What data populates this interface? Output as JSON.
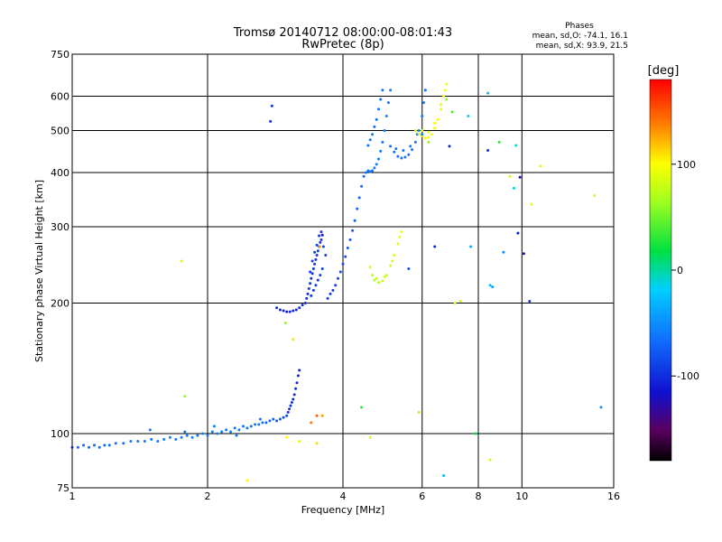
{
  "chart_data": {
    "type": "scatter",
    "title": "Tromsø 20140712 08:00:00-08:01:43",
    "subtitle": "RwPretec (8p)",
    "xlabel": "Frequency [MHz]",
    "ylabel": "Stationary phase Virtual Height [km]",
    "x_scale": "log",
    "y_scale": "log",
    "xlim": [
      1,
      16
    ],
    "ylim": [
      75,
      750
    ],
    "x_ticks": [
      1,
      2,
      4,
      6,
      8,
      10,
      16
    ],
    "x_tick_labels": [
      "1",
      "2",
      "4",
      "6",
      "8",
      "10",
      "16"
    ],
    "y_ticks": [
      75,
      100,
      200,
      300,
      400,
      500,
      600,
      750
    ],
    "y_tick_labels": [
      "75",
      "100",
      "200",
      "300",
      "400",
      "500",
      "600",
      "750"
    ],
    "grid": true,
    "stats": {
      "heading": "Phases",
      "o_line": "mean, sd,O: -74.1, 16.1",
      "x_line": "mean, sd,X:  93.9, 21.5"
    },
    "colorbar": {
      "label": "[deg]",
      "range": [
        -180,
        180
      ],
      "ticks": [
        100,
        0,
        -100
      ],
      "tick_labels": [
        "100",
        "0",
        "-100"
      ],
      "placement": "right"
    },
    "colors": {
      "grid": "#000000",
      "cyan_trace": "#22aaee",
      "blue_trace": "#1030d8",
      "yellow_trace": "#e8e010",
      "orange_trace": "#f08a10"
    },
    "points": [
      [
        1.0,
        93,
        -75
      ],
      [
        1.03,
        93,
        -70
      ],
      [
        1.06,
        94,
        -72
      ],
      [
        1.09,
        93,
        -68
      ],
      [
        1.12,
        94,
        -70
      ],
      [
        1.15,
        93,
        -66
      ],
      [
        1.18,
        94,
        -70
      ],
      [
        1.21,
        94,
        -64
      ],
      [
        1.25,
        95,
        -62
      ],
      [
        1.3,
        95,
        -66
      ],
      [
        1.35,
        96,
        -60
      ],
      [
        1.4,
        96,
        -64
      ],
      [
        1.45,
        96,
        -58
      ],
      [
        1.5,
        97,
        -62
      ],
      [
        1.55,
        96,
        -58
      ],
      [
        1.6,
        97,
        -60
      ],
      [
        1.65,
        98,
        -56
      ],
      [
        1.7,
        97,
        -62
      ],
      [
        1.75,
        98,
        -58
      ],
      [
        1.8,
        99,
        -60
      ],
      [
        1.85,
        98,
        -56
      ],
      [
        1.9,
        99,
        -62
      ],
      [
        1.95,
        100,
        -58
      ],
      [
        2.0,
        99,
        -60
      ],
      [
        2.05,
        101,
        -56
      ],
      [
        2.1,
        100,
        -62
      ],
      [
        2.15,
        101,
        -58
      ],
      [
        2.2,
        102,
        -64
      ],
      [
        2.25,
        101,
        -60
      ],
      [
        2.3,
        103,
        -62
      ],
      [
        2.35,
        102,
        -58
      ],
      [
        2.4,
        104,
        -64
      ],
      [
        2.45,
        103,
        -60
      ],
      [
        2.5,
        104,
        -62
      ],
      [
        2.55,
        105,
        -60
      ],
      [
        2.6,
        105,
        -64
      ],
      [
        2.65,
        106,
        -62
      ],
      [
        2.7,
        106,
        -70
      ],
      [
        2.75,
        107,
        -68
      ],
      [
        2.8,
        108,
        -72
      ],
      [
        2.85,
        107,
        -76
      ],
      [
        2.9,
        108,
        -78
      ],
      [
        2.95,
        109,
        -82
      ],
      [
        3.0,
        110,
        -86
      ],
      [
        3.02,
        112,
        -90
      ],
      [
        3.04,
        114,
        -94
      ],
      [
        3.06,
        116,
        -96
      ],
      [
        3.08,
        118,
        -98
      ],
      [
        3.1,
        120,
        -100
      ],
      [
        3.12,
        123,
        -100
      ],
      [
        3.14,
        127,
        -102
      ],
      [
        3.16,
        131,
        -100
      ],
      [
        3.18,
        136,
        -104
      ],
      [
        3.2,
        140,
        -102
      ],
      [
        1.49,
        102,
        -62
      ],
      [
        1.78,
        101,
        -58
      ],
      [
        2.07,
        104,
        -56
      ],
      [
        2.32,
        99,
        -58
      ],
      [
        2.62,
        108,
        -62
      ],
      [
        2.85,
        195,
        -104
      ],
      [
        2.9,
        193,
        -106
      ],
      [
        2.95,
        192,
        -104
      ],
      [
        3.0,
        191,
        -106
      ],
      [
        3.05,
        191,
        -102
      ],
      [
        3.1,
        192,
        -104
      ],
      [
        3.15,
        193,
        -106
      ],
      [
        3.2,
        195,
        -104
      ],
      [
        3.25,
        198,
        -100
      ],
      [
        3.3,
        200,
        -102
      ],
      [
        3.32,
        205,
        -98
      ],
      [
        3.34,
        210,
        -100
      ],
      [
        3.36,
        216,
        -96
      ],
      [
        3.38,
        222,
        -98
      ],
      [
        3.4,
        228,
        -96
      ],
      [
        3.42,
        234,
        -98
      ],
      [
        3.44,
        240,
        -94
      ],
      [
        3.46,
        246,
        -96
      ],
      [
        3.48,
        252,
        -94
      ],
      [
        3.5,
        258,
        -92
      ],
      [
        3.52,
        264,
        -94
      ],
      [
        3.54,
        270,
        -92
      ],
      [
        3.56,
        276,
        -94
      ],
      [
        3.58,
        280,
        -92
      ],
      [
        3.38,
        236,
        -90
      ],
      [
        3.42,
        250,
        -88
      ],
      [
        3.46,
        262,
        -92
      ],
      [
        3.5,
        272,
        -90
      ],
      [
        3.54,
        286,
        -94
      ],
      [
        3.58,
        292,
        -92
      ],
      [
        3.62,
        270,
        -90
      ],
      [
        3.66,
        258,
        -92
      ],
      [
        3.4,
        208,
        -96
      ],
      [
        3.44,
        214,
        -94
      ],
      [
        3.48,
        220,
        -92
      ],
      [
        3.52,
        226,
        -94
      ],
      [
        3.56,
        232,
        -92
      ],
      [
        3.6,
        240,
        -90
      ],
      [
        3.7,
        205,
        -92
      ],
      [
        3.75,
        210,
        -94
      ],
      [
        3.8,
        214,
        -92
      ],
      [
        3.85,
        220,
        -90
      ],
      [
        3.9,
        228,
        -88
      ],
      [
        3.95,
        236,
        -86
      ],
      [
        4.0,
        246,
        -84
      ],
      [
        4.05,
        256,
        -82
      ],
      [
        4.1,
        268,
        -80
      ],
      [
        4.15,
        280,
        -78
      ],
      [
        4.2,
        294,
        -76
      ],
      [
        4.25,
        310,
        -74
      ],
      [
        4.3,
        330,
        -72
      ],
      [
        4.35,
        350,
        -70
      ],
      [
        4.4,
        372,
        -68
      ],
      [
        4.45,
        392,
        -66
      ],
      [
        4.5,
        400,
        -64
      ],
      [
        4.55,
        404,
        -62
      ],
      [
        4.6,
        402,
        -60
      ],
      [
        4.65,
        404,
        -62
      ],
      [
        4.7,
        410,
        -60
      ],
      [
        4.75,
        418,
        -58
      ],
      [
        4.8,
        430,
        -62
      ],
      [
        4.85,
        448,
        -60
      ],
      [
        4.9,
        470,
        -58
      ],
      [
        4.95,
        500,
        -60
      ],
      [
        5.0,
        540,
        -58
      ],
      [
        5.05,
        580,
        -62
      ],
      [
        5.1,
        620,
        -60
      ],
      [
        4.55,
        462,
        -66
      ],
      [
        4.6,
        476,
        -64
      ],
      [
        4.65,
        490,
        -62
      ],
      [
        4.7,
        510,
        -66
      ],
      [
        4.75,
        530,
        -64
      ],
      [
        4.8,
        560,
        -62
      ],
      [
        4.85,
        590,
        -66
      ],
      [
        4.9,
        620,
        -64
      ],
      [
        5.1,
        460,
        -66
      ],
      [
        5.2,
        446,
        -64
      ],
      [
        5.3,
        436,
        -62
      ],
      [
        5.4,
        432,
        -66
      ],
      [
        5.5,
        434,
        -64
      ],
      [
        5.6,
        440,
        -62
      ],
      [
        5.7,
        452,
        -66
      ],
      [
        5.8,
        470,
        -64
      ],
      [
        5.9,
        500,
        -62
      ],
      [
        6.0,
        540,
        -64
      ],
      [
        6.05,
        580,
        -62
      ],
      [
        6.1,
        620,
        -66
      ],
      [
        5.25,
        454,
        -60
      ],
      [
        5.45,
        450,
        -62
      ],
      [
        5.65,
        460,
        -60
      ],
      [
        5.85,
        490,
        -62
      ],
      [
        5.8,
        500,
        88
      ],
      [
        5.9,
        492,
        92
      ],
      [
        6.0,
        486,
        96
      ],
      [
        6.1,
        480,
        94
      ],
      [
        6.2,
        482,
        98
      ],
      [
        6.3,
        490,
        94
      ],
      [
        6.4,
        506,
        92
      ],
      [
        6.5,
        530,
        96
      ],
      [
        6.6,
        560,
        94
      ],
      [
        6.7,
        600,
        98
      ],
      [
        6.8,
        640,
        96
      ],
      [
        6.0,
        500,
        90
      ],
      [
        6.2,
        496,
        94
      ],
      [
        6.4,
        520,
        98
      ],
      [
        6.6,
        574,
        92
      ],
      [
        6.75,
        620,
        96
      ],
      [
        4.6,
        242,
        80
      ],
      [
        4.65,
        232,
        76
      ],
      [
        4.7,
        226,
        72
      ],
      [
        4.8,
        223,
        74
      ],
      [
        4.9,
        225,
        76
      ],
      [
        5.0,
        232,
        80
      ],
      [
        5.1,
        244,
        84
      ],
      [
        5.2,
        258,
        88
      ],
      [
        5.3,
        274,
        90
      ],
      [
        5.4,
        292,
        92
      ],
      [
        4.75,
        228,
        78
      ],
      [
        4.95,
        230,
        82
      ],
      [
        5.15,
        250,
        86
      ],
      [
        5.35,
        284,
        90
      ],
      [
        2.78,
        570,
        -96
      ],
      [
        2.76,
        525,
        -98
      ],
      [
        3.55,
        270,
        130
      ],
      [
        3.6,
        287,
        -120
      ],
      [
        3.5,
        110,
        150
      ],
      [
        3.6,
        110,
        130
      ],
      [
        3.4,
        106,
        140
      ],
      [
        3.0,
        98,
        100
      ],
      [
        3.2,
        96,
        92
      ],
      [
        3.5,
        95,
        110
      ],
      [
        4.4,
        115,
        30
      ],
      [
        4.6,
        98,
        80
      ],
      [
        3.1,
        165,
        110
      ],
      [
        2.98,
        180,
        60
      ],
      [
        1.75,
        250,
        80
      ],
      [
        1.78,
        122,
        60
      ],
      [
        2.45,
        78,
        100
      ],
      [
        5.9,
        112,
        70
      ],
      [
        6.0,
        490,
        -60
      ],
      [
        6.2,
        470,
        60
      ],
      [
        6.9,
        460,
        -104
      ],
      [
        6.4,
        270,
        -104
      ],
      [
        6.7,
        80,
        -30
      ],
      [
        6.8,
        590,
        60
      ],
      [
        7.0,
        552,
        40
      ],
      [
        7.1,
        200,
        80
      ],
      [
        7.3,
        202,
        80
      ],
      [
        7.6,
        540,
        -20
      ],
      [
        7.7,
        270,
        -40
      ],
      [
        8.4,
        610,
        -30
      ],
      [
        8.4,
        450,
        -100
      ],
      [
        8.5,
        220,
        -30
      ],
      [
        8.6,
        218,
        -40
      ],
      [
        8.5,
        87,
        80
      ],
      [
        8.9,
        470,
        30
      ],
      [
        9.1,
        262,
        -50
      ],
      [
        9.4,
        392,
        80
      ],
      [
        9.6,
        368,
        -10
      ],
      [
        9.7,
        462,
        -10
      ],
      [
        9.8,
        290,
        -110
      ],
      [
        9.9,
        390,
        -115
      ],
      [
        10.1,
        260,
        -130
      ],
      [
        10.4,
        202,
        -100
      ],
      [
        10.5,
        338,
        90
      ],
      [
        11.0,
        414,
        90
      ],
      [
        14.5,
        354,
        80
      ],
      [
        15.0,
        115,
        -50
      ],
      [
        7.9,
        100,
        20
      ],
      [
        5.6,
        240,
        -80
      ]
    ]
  }
}
